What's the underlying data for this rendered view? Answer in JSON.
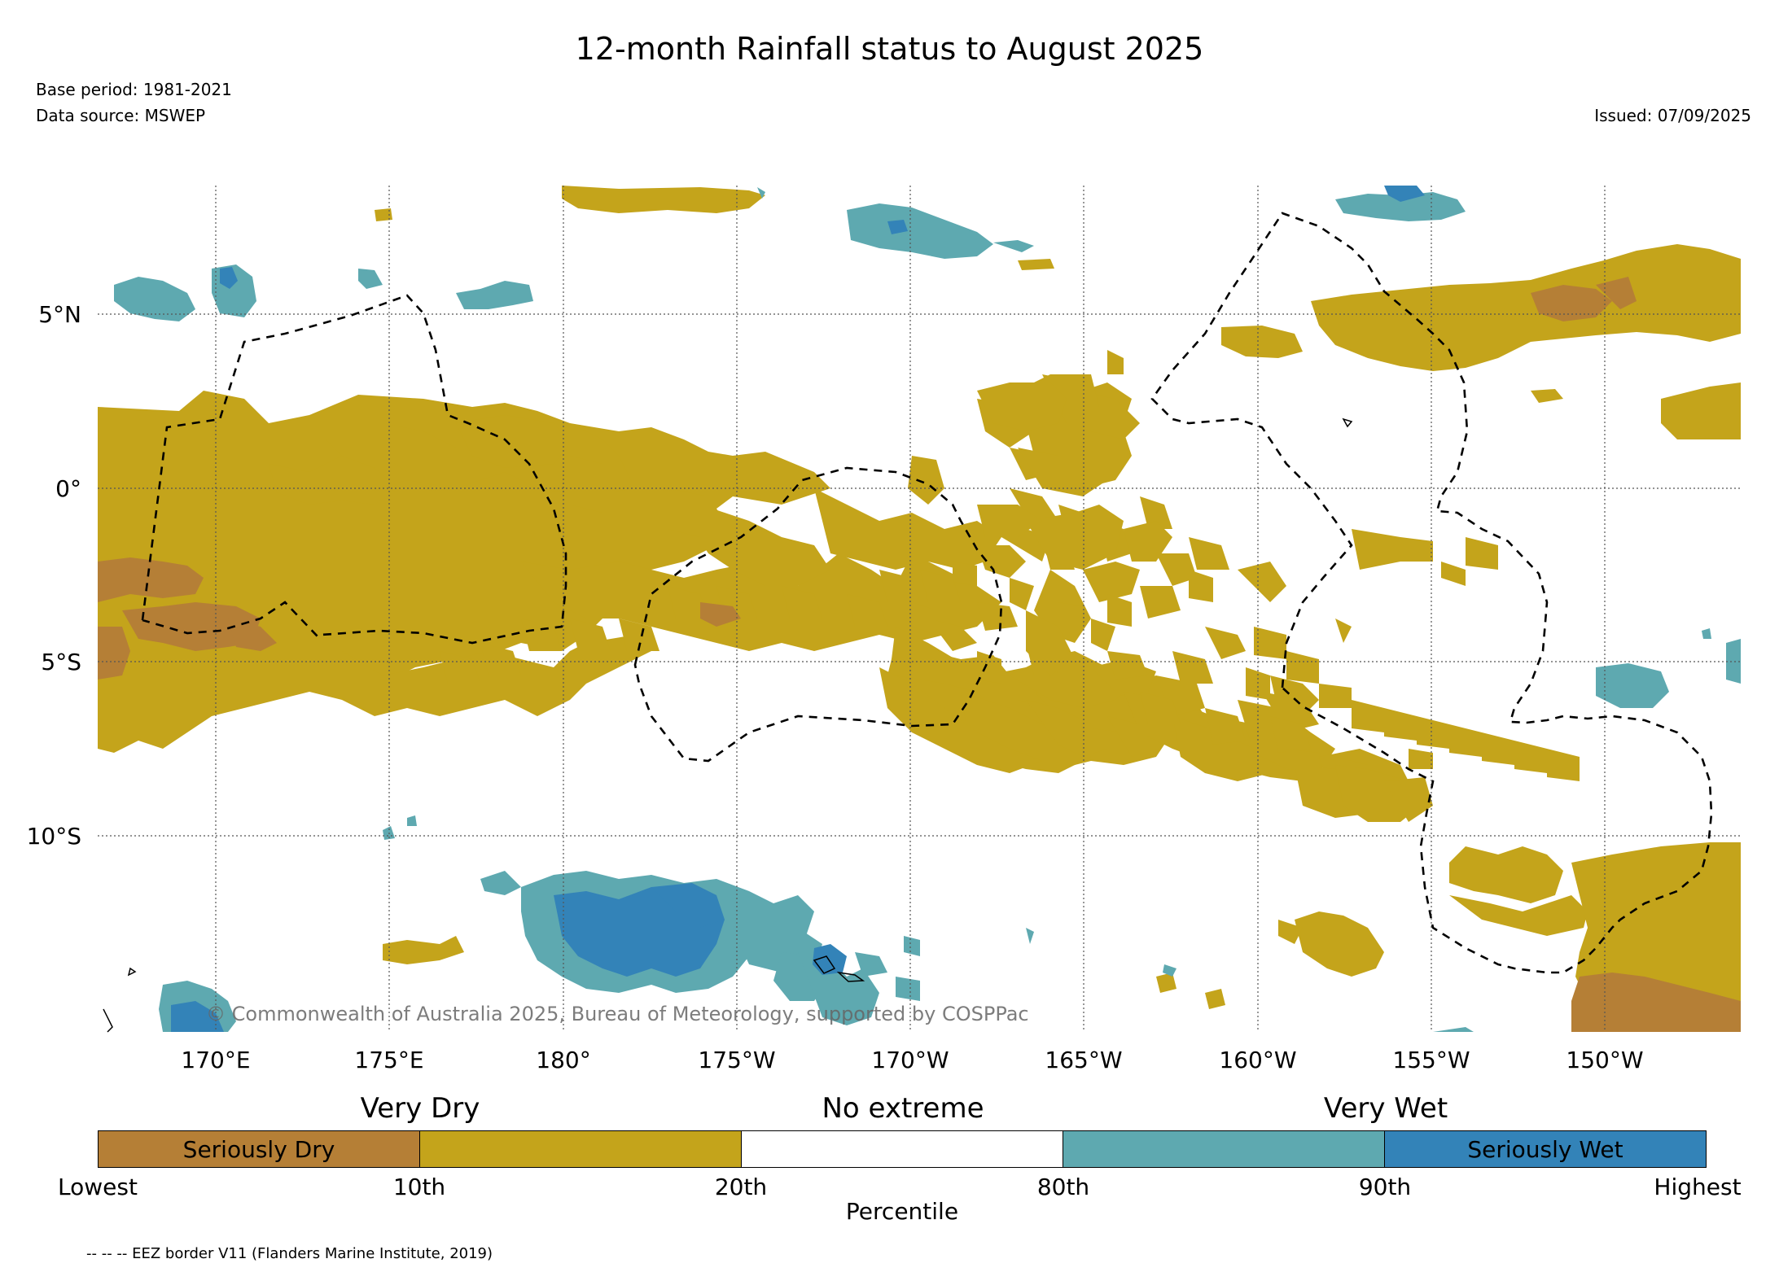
{
  "title": "12-month Rainfall status to August 2025",
  "base_period": "Base period: 1981-2021",
  "data_source": "Data source: MSWEP",
  "issued": "Issued: 07/09/2025",
  "copyright": "© Commonwealth of Australia 2025, Bureau of Meteorology, supported by COSPPac",
  "eez_note": "-- -- -- EEZ border V11 (Flanders Marine Institute, 2019)",
  "axes": {
    "y_labels": [
      "5°N",
      "0°",
      "5°S",
      "10°S"
    ],
    "x_labels": [
      "170°E",
      "175°E",
      "180°",
      "175°W",
      "170°W",
      "165°W",
      "160°W",
      "155°W",
      "150°W"
    ]
  },
  "legend": {
    "groups": [
      "Very Dry",
      "No extreme",
      "Very Wet"
    ],
    "segments": [
      {
        "label": "Seriously Dry",
        "color": "#b57f36"
      },
      {
        "label": "",
        "color": "#c4a41b"
      },
      {
        "label": "",
        "color": "#ffffff"
      },
      {
        "label": "",
        "color": "#5ea9b0"
      },
      {
        "label": "Seriously Wet",
        "color": "#3383b8"
      }
    ],
    "ticks": [
      "Lowest",
      "10th",
      "20th",
      "80th",
      "90th",
      "Highest"
    ],
    "axis_label": "Percentile"
  },
  "colors": {
    "seriously_dry": "#b57f36",
    "very_dry": "#c4a41b",
    "very_wet": "#5ea9b0",
    "seriously_wet": "#3383b8",
    "grid": "#555555",
    "eez": "#000000"
  }
}
